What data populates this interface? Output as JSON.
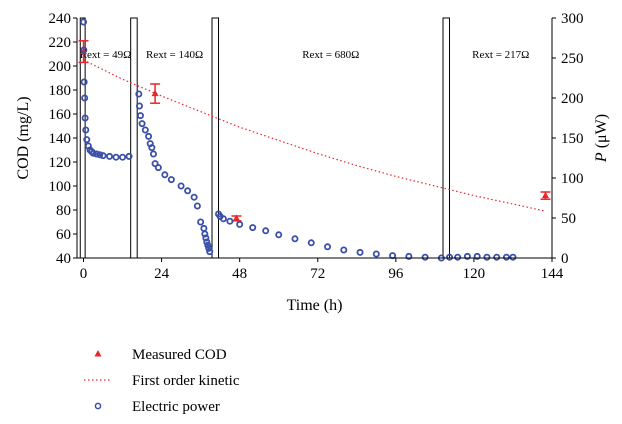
{
  "chart_data": {
    "type": "line",
    "xlabel": "Time (h)",
    "ylabel_left": "COD (mg/L)",
    "ylabel_right_italic": "P",
    "ylabel_right_unit": " (μW)",
    "xlim": [
      -2,
      144
    ],
    "ylim_left": [
      40,
      240
    ],
    "ylim_right": [
      0,
      300
    ],
    "x_ticks": [
      0,
      24,
      48,
      72,
      96,
      120,
      144
    ],
    "y_left_ticks": [
      40,
      60,
      80,
      100,
      120,
      140,
      160,
      180,
      200,
      220,
      240
    ],
    "y_right_ticks": [
      0,
      50,
      100,
      150,
      200,
      250,
      300
    ],
    "grid": false,
    "legend_position": "bottom-left",
    "regions": [
      {
        "label": "Rext = 49Ω",
        "x_start": -1,
        "x_end": 14.5
      },
      {
        "label": "Rext = 140Ω",
        "x_start": 16.5,
        "x_end": 39.5
      },
      {
        "label": "Rext = 680Ω",
        "x_start": 41.5,
        "x_end": 110.5
      },
      {
        "label": "Rext = 217Ω",
        "x_start": 112.5,
        "x_end": 146
      }
    ],
    "dividers": [
      {
        "x_start": -1,
        "x_end": 0.5
      },
      {
        "x_start": 14.5,
        "x_end": 16.5
      },
      {
        "x_start": 39.5,
        "x_end": 41.5
      },
      {
        "x_start": 110.5,
        "x_end": 112.5
      }
    ],
    "series": [
      {
        "name": "Measured COD",
        "axis": "left",
        "marker": "triangle",
        "color": "#e8262b",
        "x": [
          0,
          22,
          47,
          142
        ],
        "y": [
          212,
          177,
          73,
          92
        ],
        "yerr": [
          9,
          8,
          2,
          3
        ]
      },
      {
        "name": "First order kinetic",
        "axis": "left",
        "style": "dotted",
        "color": "#e8262b",
        "x": [
          0,
          12,
          24,
          36,
          48,
          60,
          72,
          84,
          96,
          108,
          120,
          132,
          142
        ],
        "y": [
          205,
          189,
          175,
          162,
          149,
          138,
          127,
          117,
          108,
          100,
          92,
          85,
          79
        ]
      },
      {
        "name": "Electric power",
        "axis": "right",
        "marker": "circle",
        "color": "#3a4fa8",
        "x": [
          0,
          0.1,
          0.2,
          0.35,
          0.5,
          0.7,
          1,
          1.5,
          2,
          2.5,
          3,
          4,
          5,
          6,
          8,
          10,
          12,
          14,
          17,
          17.2,
          17.5,
          18,
          19,
          20,
          20.5,
          21,
          21.5,
          22,
          23,
          25,
          27,
          30,
          32,
          34,
          35,
          36,
          37,
          37.3,
          37.6,
          37.9,
          38.2,
          38.5,
          38.8,
          41.5,
          42,
          43,
          45,
          48,
          52,
          56,
          60,
          65,
          70,
          75,
          80,
          85,
          90,
          95,
          100,
          105,
          110,
          112.5,
          115,
          118,
          121,
          124,
          127,
          130,
          132
        ],
        "y": [
          295,
          260,
          220,
          200,
          175,
          160,
          148,
          140,
          135,
          133,
          131,
          130,
          129,
          128,
          127,
          126,
          126,
          127,
          205,
          190,
          178,
          168,
          160,
          152,
          143,
          138,
          130,
          118,
          113,
          104,
          98,
          90,
          84,
          76,
          65,
          45,
          37,
          30,
          25,
          20,
          16,
          12,
          8,
          55,
          52,
          49,
          46,
          42,
          38,
          34,
          29,
          24,
          19,
          14,
          10,
          7,
          5,
          3,
          2,
          1,
          0,
          1,
          1,
          2,
          2,
          1,
          1,
          1,
          1
        ]
      }
    ]
  }
}
